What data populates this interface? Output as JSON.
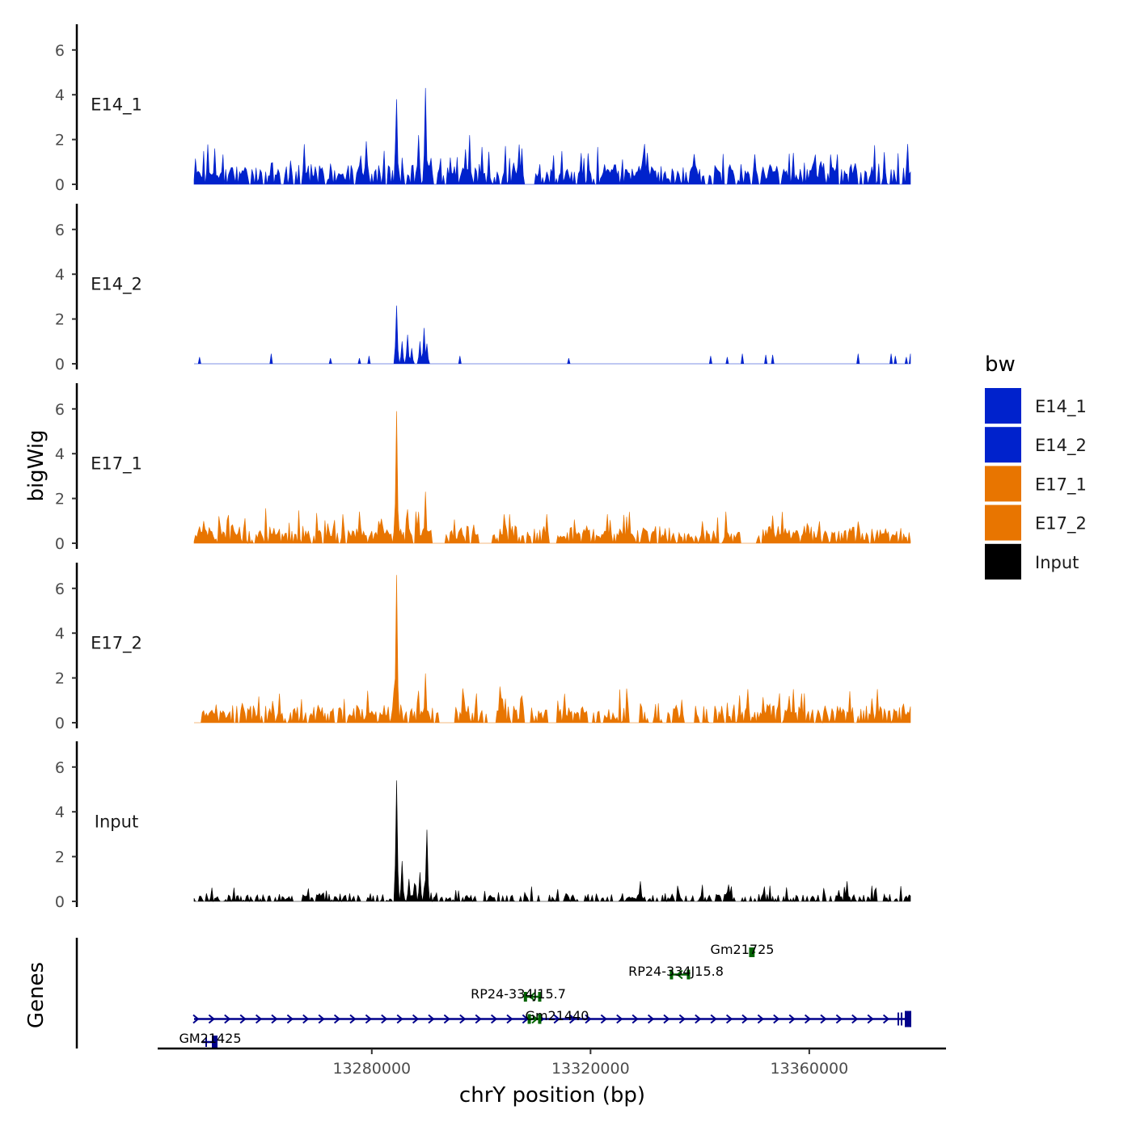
{
  "chart_data": {
    "type": "area",
    "title": "",
    "ylabel": "bigWig",
    "genes_label": "Genes",
    "xlabel": "chrY position (bp)",
    "xlim": [
      13245000,
      13380000
    ],
    "ylim": [
      -0.1,
      7.0
    ],
    "yticks": [
      "0",
      "2",
      "4",
      "6"
    ],
    "xticks": [
      {
        "value": 13280000,
        "label": "13280000"
      },
      {
        "value": 13320000,
        "label": "13320000"
      },
      {
        "value": 13360000,
        "label": "13360000"
      }
    ],
    "colors": {
      "E14_1": "#0022cc",
      "E14_2": "#0022cc",
      "E17_1": "#e87500",
      "E17_2": "#e87500",
      "Input": "#000000"
    },
    "series": [
      {
        "name": "E14_1",
        "color": "#0022cc",
        "base": 0.45,
        "noise": 1.1,
        "density": 0.75,
        "seed": 11,
        "peaks": [
          [
            13284600,
            3.8
          ],
          [
            13289800,
            4.3
          ],
          [
            13288600,
            2.2
          ],
          [
            13298000,
            2.2
          ],
          [
            13307400,
            1.6
          ],
          [
            13330000,
            1.8
          ],
          [
            13251400,
            1.6
          ],
          [
            13378000,
            1.8
          ]
        ],
        "gaps": [
          [
            13307500,
            13309500
          ]
        ]
      },
      {
        "name": "E14_2",
        "color": "#0022cc",
        "base": 0,
        "noise": 0,
        "density": 0,
        "seed": 23,
        "peaks": [
          [
            13284600,
            2.6
          ],
          [
            13285500,
            1.0
          ],
          [
            13286500,
            1.3
          ],
          [
            13287400,
            0.7
          ],
          [
            13288800,
            1.0
          ],
          [
            13289500,
            1.6
          ],
          [
            13290000,
            0.9
          ]
        ],
        "spikes": [
          [
            13248500,
            0.3
          ],
          [
            13261500,
            0.45
          ],
          [
            13272500,
            0.25
          ],
          [
            13277700,
            0.25
          ],
          [
            13279600,
            0.35
          ],
          [
            13296000,
            0.35
          ],
          [
            13316000,
            0.25
          ],
          [
            13342000,
            0.35
          ],
          [
            13345000,
            0.3
          ],
          [
            13347800,
            0.45
          ],
          [
            13352000,
            0.4
          ],
          [
            13353400,
            0.4
          ],
          [
            13369000,
            0.45
          ],
          [
            13375000,
            0.45
          ],
          [
            13375800,
            0.35
          ],
          [
            13377700,
            0.3
          ],
          [
            13378500,
            0.45
          ]
        ],
        "gaps": []
      },
      {
        "name": "E17_1",
        "color": "#e87500",
        "base": 0.4,
        "noise": 0.9,
        "density": 0.8,
        "seed": 37,
        "peaks": [
          [
            13284600,
            5.9
          ],
          [
            13289700,
            2.3
          ],
          [
            13288600,
            1.4
          ],
          [
            13312000,
            1.3
          ],
          [
            13327000,
            1.4
          ],
          [
            13355000,
            1.4
          ],
          [
            13323000,
            1.3
          ]
        ],
        "gaps": [
          [
            13291000,
            13293500
          ],
          [
            13300000,
            13302000
          ],
          [
            13312500,
            13314000
          ],
          [
            13347500,
            13350000
          ]
        ]
      },
      {
        "name": "E17_2",
        "color": "#e87500",
        "base": 0.45,
        "noise": 0.95,
        "density": 0.75,
        "seed": 53,
        "peaks": [
          [
            13284600,
            6.6
          ],
          [
            13289900,
            2.2
          ],
          [
            13288500,
            1.1
          ],
          [
            13263000,
            1.3
          ],
          [
            13357000,
            1.5
          ],
          [
            13367500,
            1.4
          ],
          [
            13372500,
            1.5
          ]
        ],
        "gaps": [
          [
            13245000,
            13246400
          ],
          [
            13247200,
            13249000
          ],
          [
            13292500,
            13295000
          ],
          [
            13301000,
            13302500
          ],
          [
            13307800,
            13309000
          ],
          [
            13312000,
            13314000
          ],
          [
            13319500,
            13320500
          ],
          [
            13327000,
            13329000
          ],
          [
            13333000,
            13334000
          ],
          [
            13337000,
            13339000
          ],
          [
            13341500,
            13342500
          ]
        ]
      },
      {
        "name": "Input",
        "color": "#000000",
        "base": 0.15,
        "noise": 0.5,
        "density": 0.6,
        "seed": 71,
        "peaks": [
          [
            13284500,
            5.4
          ],
          [
            13290000,
            3.2
          ],
          [
            13285500,
            1.8
          ],
          [
            13288900,
            1.3
          ],
          [
            13286700,
            1.0
          ],
          [
            13287800,
            0.8
          ],
          [
            13329000,
            0.9
          ],
          [
            13367000,
            0.9
          ]
        ],
        "gaps": [
          [
            13299000,
            13300500
          ],
          [
            13318000,
            13319000
          ]
        ]
      }
    ],
    "genes": [
      {
        "name": "GM21425",
        "strand": "+",
        "start": 13247500,
        "end": 13378500,
        "color": "#00008b",
        "row": 1,
        "labelX": 13252000,
        "labelRow": 0
      },
      {
        "name": "Gm21440",
        "strand": "+",
        "start": 13308500,
        "end": 13311000,
        "color": "#006400",
        "row": 1,
        "labelX": 13312500,
        "labelRow": 1.12
      },
      {
        "name": "RP24-334J15.7",
        "strand": "-",
        "start": 13307800,
        "end": 13311000,
        "color": "#006400",
        "row": 2,
        "labelX": 13309500,
        "labelRow": 2.12
      },
      {
        "name": "RP24-334J15.8",
        "strand": "-",
        "start": 13334500,
        "end": 13338200,
        "color": "#006400",
        "row": 3,
        "labelX": 13336500,
        "labelRow": 3.12
      },
      {
        "name": "Gm21725",
        "strand": "+",
        "start": 13349000,
        "end": 13350000,
        "color": "#006400",
        "row": 4,
        "labelX": 13349500,
        "labelRow": 4.12
      }
    ],
    "legend": {
      "title": "bw",
      "position": "right",
      "entries": [
        {
          "name": "E14_1",
          "color": "#0022cc"
        },
        {
          "name": "E14_2",
          "color": "#0022cc"
        },
        {
          "name": "E17_1",
          "color": "#e87500"
        },
        {
          "name": "E17_2",
          "color": "#e87500"
        },
        {
          "name": "Input",
          "color": "#000000"
        }
      ]
    }
  }
}
